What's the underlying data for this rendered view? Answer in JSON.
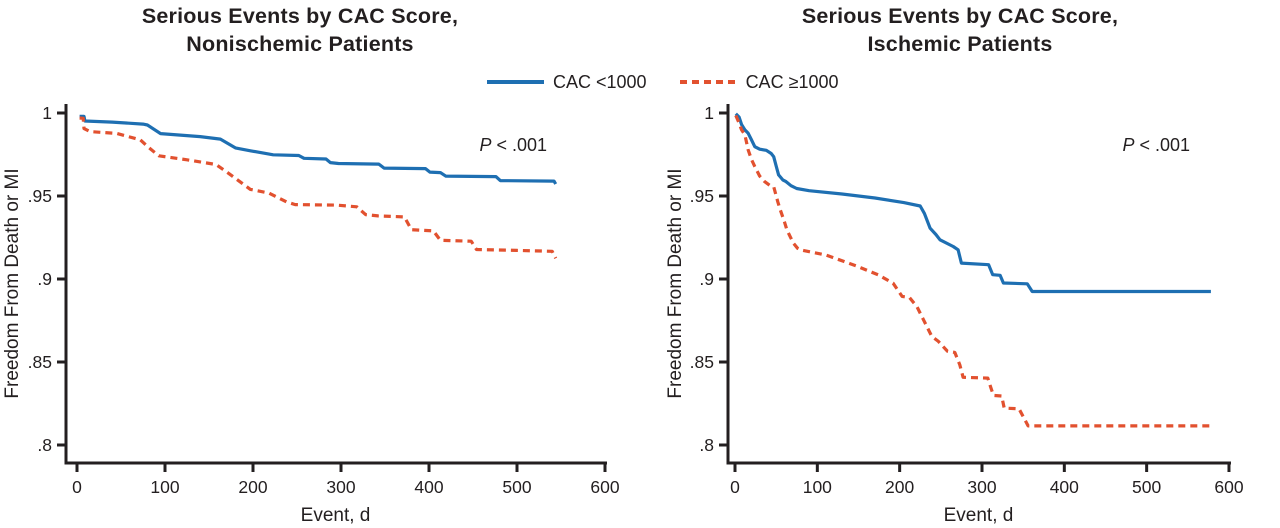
{
  "figure": {
    "background": "#ffffff",
    "text_color": "#231f20",
    "accent_blue": "#1e6fb2",
    "accent_orange": "#e2512f"
  },
  "legend": {
    "items": [
      {
        "label": "CAC <1000",
        "color": "#1e6fb2",
        "style": "solid"
      },
      {
        "label": "CAC ≥1000",
        "color": "#e2512f",
        "style": "dashed"
      }
    ]
  },
  "chart_data": [
    {
      "type": "line",
      "title": "Serious Events by CAC Score, Nonischemic Patients",
      "title_line1": "Serious Events by CAC Score,",
      "title_line2": "Nonischemic Patients",
      "xlabel": "Event, d",
      "ylabel": "Freedom From Death or MI",
      "xlim": [
        0,
        600
      ],
      "ylim": [
        0.8,
        1.0
      ],
      "grid": false,
      "legend_position": "top-center-shared",
      "annotation": {
        "italic": "P",
        "text": " < .001",
        "full": "P < .001"
      },
      "xticks": [
        0,
        100,
        200,
        300,
        400,
        500,
        600
      ],
      "yticks": [
        {
          "v": 1.0,
          "label": "1"
        },
        {
          "v": 0.95,
          "label": ".95"
        },
        {
          "v": 0.9,
          "label": ".9"
        },
        {
          "v": 0.85,
          "label": ".85"
        },
        {
          "v": 0.8,
          "label": ".8"
        }
      ],
      "series": [
        {
          "name": "CAC <1000",
          "color": "#1e6fb2",
          "style": "solid",
          "points": [
            [
              3,
              0.998
            ],
            [
              8,
              0.998
            ],
            [
              9,
              0.9952
            ],
            [
              40,
              0.9945
            ],
            [
              75,
              0.9933
            ],
            [
              80,
              0.9928
            ],
            [
              95,
              0.9876
            ],
            [
              140,
              0.9858
            ],
            [
              163,
              0.9843
            ],
            [
              180,
              0.979
            ],
            [
              197,
              0.9772
            ],
            [
              223,
              0.9748
            ],
            [
              252,
              0.9744
            ],
            [
              258,
              0.9727
            ],
            [
              283,
              0.9723
            ],
            [
              288,
              0.9701
            ],
            [
              297,
              0.9696
            ],
            [
              343,
              0.9692
            ],
            [
              349,
              0.9668
            ],
            [
              396,
              0.9665
            ],
            [
              401,
              0.9644
            ],
            [
              413,
              0.9641
            ],
            [
              419,
              0.962
            ],
            [
              476,
              0.9617
            ],
            [
              481,
              0.9593
            ],
            [
              542,
              0.959
            ],
            [
              544,
              0.9572
            ]
          ]
        },
        {
          "name": "CAC ≥1000",
          "color": "#e2512f",
          "style": "dashed",
          "points": [
            [
              3,
              0.997
            ],
            [
              7,
              0.9968
            ],
            [
              8,
              0.9906
            ],
            [
              15,
              0.9888
            ],
            [
              45,
              0.9877
            ],
            [
              72,
              0.9838
            ],
            [
              82,
              0.979
            ],
            [
              93,
              0.9742
            ],
            [
              125,
              0.9718
            ],
            [
              158,
              0.969
            ],
            [
              170,
              0.9645
            ],
            [
              182,
              0.9598
            ],
            [
              197,
              0.954
            ],
            [
              218,
              0.9518
            ],
            [
              238,
              0.9465
            ],
            [
              248,
              0.9448
            ],
            [
              295,
              0.9445
            ],
            [
              318,
              0.9435
            ],
            [
              328,
              0.9388
            ],
            [
              342,
              0.938
            ],
            [
              372,
              0.9374
            ],
            [
              380,
              0.9297
            ],
            [
              405,
              0.929
            ],
            [
              413,
              0.9233
            ],
            [
              448,
              0.9228
            ],
            [
              454,
              0.9178
            ],
            [
              500,
              0.9172
            ],
            [
              540,
              0.9167
            ],
            [
              544,
              0.9125
            ]
          ]
        }
      ]
    },
    {
      "type": "line",
      "title": "Serious Events by CAC Score, Ischemic Patients",
      "title_line1": "Serious Events by CAC Score,",
      "title_line2": "Ischemic Patients",
      "xlabel": "Event, d",
      "ylabel": "Freedom From Death or MI",
      "xlim": [
        0,
        600
      ],
      "ylim": [
        0.8,
        1.0
      ],
      "grid": false,
      "legend_position": "top-center-shared",
      "annotation": {
        "italic": "P",
        "text": " < .001",
        "full": "P < .001"
      },
      "xticks": [
        0,
        100,
        200,
        300,
        400,
        500,
        600
      ],
      "yticks": [
        {
          "v": 1.0,
          "label": "1"
        },
        {
          "v": 0.95,
          "label": ".95"
        },
        {
          "v": 0.9,
          "label": ".9"
        },
        {
          "v": 0.85,
          "label": ".85"
        },
        {
          "v": 0.8,
          "label": ".8"
        }
      ],
      "series": [
        {
          "name": "CAC <1000",
          "color": "#1e6fb2",
          "style": "solid",
          "points": [
            [
              1,
              0.9995
            ],
            [
              5,
              0.9975
            ],
            [
              8,
              0.993
            ],
            [
              12,
              0.9898
            ],
            [
              16,
              0.9878
            ],
            [
              20,
              0.9838
            ],
            [
              24,
              0.9797
            ],
            [
              30,
              0.9782
            ],
            [
              38,
              0.9775
            ],
            [
              44,
              0.9756
            ],
            [
              47,
              0.9737
            ],
            [
              50,
              0.968
            ],
            [
              53,
              0.9627
            ],
            [
              58,
              0.9597
            ],
            [
              62,
              0.9587
            ],
            [
              68,
              0.9562
            ],
            [
              75,
              0.9545
            ],
            [
              90,
              0.9532
            ],
            [
              130,
              0.9512
            ],
            [
              170,
              0.9488
            ],
            [
              205,
              0.946
            ],
            [
              225,
              0.944
            ],
            [
              230,
              0.9395
            ],
            [
              237,
              0.9306
            ],
            [
              244,
              0.9268
            ],
            [
              249,
              0.9236
            ],
            [
              265,
              0.9196
            ],
            [
              271,
              0.9176
            ],
            [
              275,
              0.9096
            ],
            [
              308,
              0.9086
            ],
            [
              313,
              0.9026
            ],
            [
              322,
              0.9022
            ],
            [
              326,
              0.8976
            ],
            [
              355,
              0.8971
            ],
            [
              361,
              0.8925
            ],
            [
              578,
              0.8925
            ]
          ]
        },
        {
          "name": "CAC ≥1000",
          "color": "#e2512f",
          "style": "dashed",
          "points": [
            [
              1,
              0.9985
            ],
            [
              4,
              0.995
            ],
            [
              8,
              0.9898
            ],
            [
              12,
              0.9868
            ],
            [
              16,
              0.9777
            ],
            [
              20,
              0.972
            ],
            [
              24,
              0.9677
            ],
            [
              30,
              0.962
            ],
            [
              36,
              0.9587
            ],
            [
              42,
              0.9565
            ],
            [
              47,
              0.9556
            ],
            [
              52,
              0.9465
            ],
            [
              55,
              0.9416
            ],
            [
              60,
              0.9345
            ],
            [
              63,
              0.9296
            ],
            [
              68,
              0.9245
            ],
            [
              71,
              0.9215
            ],
            [
              76,
              0.9185
            ],
            [
              80,
              0.9175
            ],
            [
              110,
              0.9145
            ],
            [
              148,
              0.9078
            ],
            [
              174,
              0.9025
            ],
            [
              192,
              0.8975
            ],
            [
              203,
              0.8895
            ],
            [
              212,
              0.8888
            ],
            [
              221,
              0.8834
            ],
            [
              229,
              0.8754
            ],
            [
              239,
              0.8654
            ],
            [
              247,
              0.8624
            ],
            [
              258,
              0.8565
            ],
            [
              267,
              0.8558
            ],
            [
              273,
              0.8483
            ],
            [
              277,
              0.8408
            ],
            [
              307,
              0.8403
            ],
            [
              311,
              0.8343
            ],
            [
              314,
              0.8299
            ],
            [
              324,
              0.8295
            ],
            [
              327,
              0.8222
            ],
            [
              345,
              0.8218
            ],
            [
              351,
              0.8162
            ],
            [
              356,
              0.8115
            ],
            [
              577,
              0.8115
            ]
          ]
        }
      ]
    }
  ]
}
